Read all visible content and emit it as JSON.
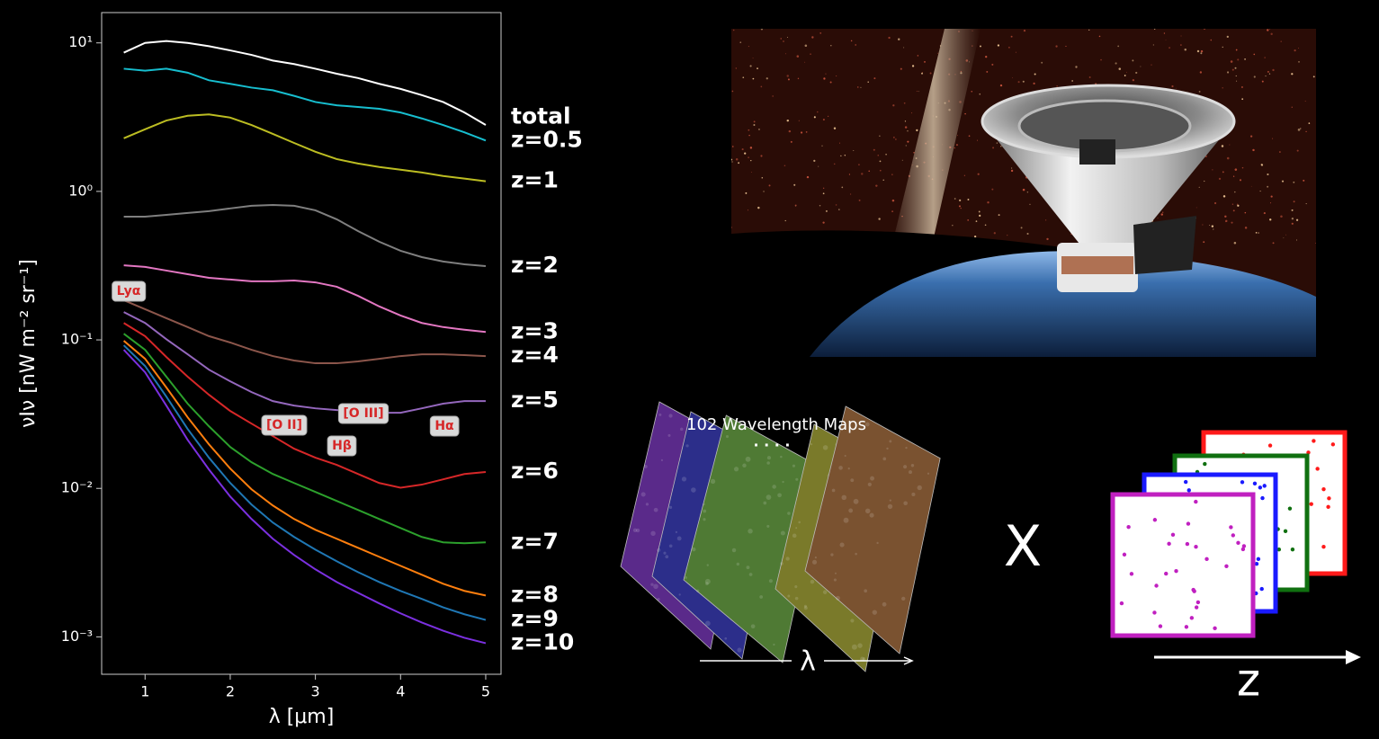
{
  "chart_data": {
    "type": "line",
    "yscale": "log",
    "xlabel": "λ [μm]",
    "ylabel": "νIν [nW m⁻² sr⁻¹]",
    "x": [
      0.75,
      1.0,
      1.25,
      1.5,
      1.75,
      2.0,
      2.25,
      2.5,
      2.75,
      3.0,
      3.25,
      3.5,
      3.75,
      4.0,
      4.25,
      4.5,
      4.75,
      5.0
    ],
    "xlim": [
      0.49,
      5.18
    ],
    "xticks": [
      1,
      2,
      3,
      4,
      5
    ],
    "ylim": [
      0.00056,
      16
    ],
    "yticks": [
      {
        "value": 10,
        "label": "10¹"
      },
      {
        "value": 1,
        "label": "10⁰"
      },
      {
        "value": 0.1,
        "label": "10⁻¹"
      },
      {
        "value": 0.01,
        "label": "10⁻²"
      },
      {
        "value": 0.001,
        "label": "10⁻³"
      }
    ],
    "series": [
      {
        "name": "total",
        "color": "#ffffff",
        "values": [
          8.6,
          10,
          10.3,
          10,
          9.5,
          8.9,
          8.3,
          7.6,
          7.2,
          6.7,
          6.2,
          5.8,
          5.3,
          4.9,
          4.45,
          4.0,
          3.4,
          2.8
        ]
      },
      {
        "name": "z=0.5",
        "color": "#17becf",
        "values": [
          6.7,
          6.5,
          6.7,
          6.3,
          5.6,
          5.3,
          5.0,
          4.8,
          4.4,
          4.0,
          3.8,
          3.7,
          3.6,
          3.4,
          3.1,
          2.8,
          2.5,
          2.2
        ]
      },
      {
        "name": "z=1",
        "color": "#bcbd22",
        "values": [
          2.28,
          2.62,
          3.0,
          3.23,
          3.3,
          3.14,
          2.8,
          2.44,
          2.12,
          1.85,
          1.65,
          1.54,
          1.46,
          1.4,
          1.34,
          1.27,
          1.22,
          1.17
        ]
      },
      {
        "name": "z=2",
        "color": "#7f7f7f",
        "values": [
          0.676,
          0.676,
          0.695,
          0.716,
          0.736,
          0.768,
          0.8,
          0.81,
          0.8,
          0.746,
          0.649,
          0.541,
          0.458,
          0.398,
          0.361,
          0.337,
          0.323,
          0.314
        ]
      },
      {
        "name": "z=3",
        "color": "#e377c2",
        "values": [
          0.318,
          0.31,
          0.293,
          0.277,
          0.262,
          0.255,
          0.248,
          0.248,
          0.251,
          0.244,
          0.228,
          0.198,
          0.168,
          0.146,
          0.13,
          0.122,
          0.117,
          0.113
        ]
      },
      {
        "name": "z=4",
        "color": "#8c564b",
        "values": [
          0.185,
          0.161,
          0.14,
          0.122,
          0.106,
          0.096,
          0.0858,
          0.0778,
          0.0726,
          0.0696,
          0.0696,
          0.0716,
          0.0746,
          0.0778,
          0.08,
          0.08,
          0.0789,
          0.0778
        ]
      },
      {
        "name": "z=5",
        "color": "#9467bd",
        "values": [
          0.154,
          0.13,
          0.101,
          0.08,
          0.063,
          0.0526,
          0.0445,
          0.0387,
          0.0361,
          0.0346,
          0.0337,
          0.0332,
          0.0323,
          0.0323,
          0.0346,
          0.0372,
          0.0387,
          0.0387
        ]
      },
      {
        "name": "z=6",
        "color": "#d62728",
        "values": [
          0.13,
          0.106,
          0.0767,
          0.0565,
          0.0427,
          0.0332,
          0.0273,
          0.0225,
          0.0185,
          0.0161,
          0.0144,
          0.0125,
          0.01087,
          0.0101,
          0.0106,
          0.0115,
          0.0125,
          0.0129
        ]
      },
      {
        "name": "z=7",
        "color": "#2ca02c",
        "values": [
          0.11,
          0.0858,
          0.0565,
          0.0372,
          0.0262,
          0.019,
          0.015,
          0.0125,
          0.01087,
          0.00946,
          0.00823,
          0.00716,
          0.00622,
          0.00541,
          0.00471,
          0.00433,
          0.00427,
          0.00433
        ]
      },
      {
        "name": "z=8",
        "color": "#ff7f0e",
        "values": [
          0.0986,
          0.0746,
          0.0478,
          0.0301,
          0.0198,
          0.0136,
          0.00986,
          0.00767,
          0.00622,
          0.00526,
          0.00458,
          0.00398,
          0.00346,
          0.00301,
          0.00262,
          0.00228,
          0.00204,
          0.0019
        ]
      },
      {
        "name": "z=9",
        "color": "#1f77b4",
        "values": [
          0.092,
          0.0667,
          0.0415,
          0.0251,
          0.0161,
          0.01087,
          0.00778,
          0.00589,
          0.00471,
          0.00387,
          0.00323,
          0.00273,
          0.00234,
          0.00204,
          0.0018,
          0.00158,
          0.00142,
          0.0013
        ]
      },
      {
        "name": "z=10",
        "color": "#7b30e0",
        "values": [
          0.0858,
          0.0605,
          0.0361,
          0.0212,
          0.0134,
          0.00881,
          0.00622,
          0.00458,
          0.00356,
          0.00285,
          0.00234,
          0.00198,
          0.00168,
          0.00144,
          0.00125,
          0.0011,
          0.000986,
          0.000907
        ]
      }
    ],
    "annotations": [
      "Lyα",
      "[O II]",
      "Hβ",
      "[O III]",
      "Hα"
    ]
  },
  "illustration": {
    "maps_caption": "102 Wavelength Maps",
    "ellipsis": "· · · ·",
    "wavelength_axis": "λ",
    "operator": "X",
    "redshift_axis": "z"
  }
}
